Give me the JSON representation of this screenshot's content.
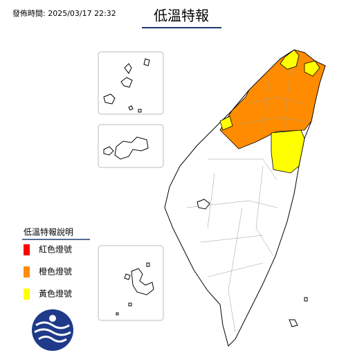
{
  "header": {
    "issue_time": "發佈時間: 2025/03/17 22:32",
    "title": "低溫特報"
  },
  "legend": {
    "title": "低溫特報說明",
    "items": [
      {
        "label": "紅色燈號",
        "color": "#ff0000"
      },
      {
        "label": "橙色燈號",
        "color": "#ff8c00"
      },
      {
        "label": "黃色燈號",
        "color": "#ffff00"
      }
    ]
  }
}
